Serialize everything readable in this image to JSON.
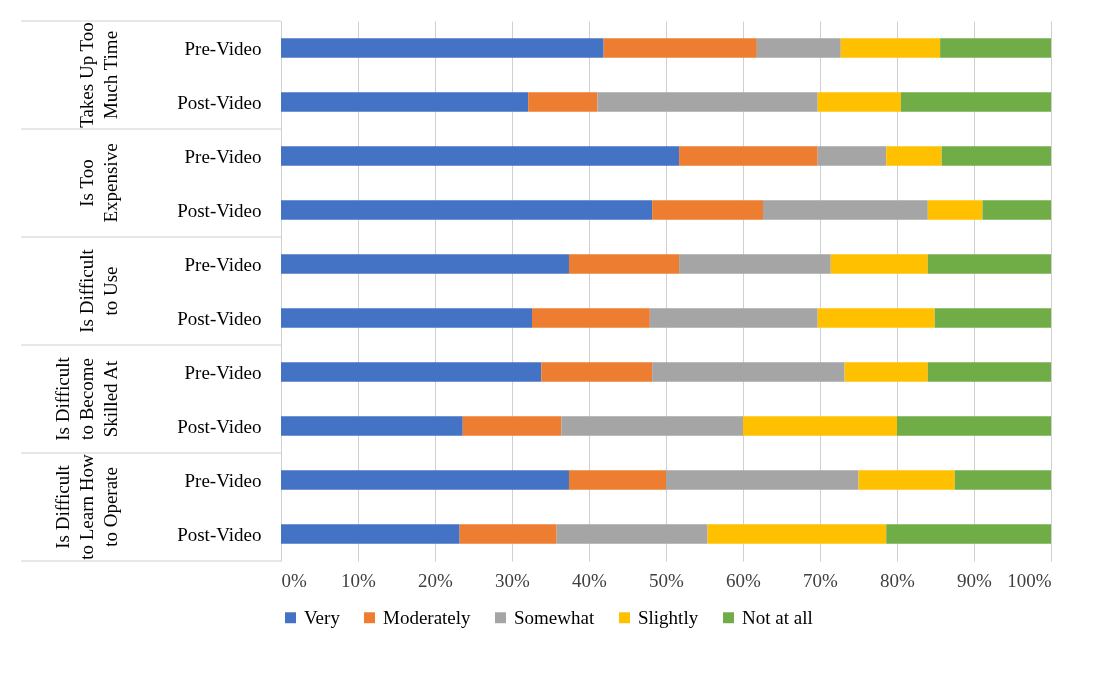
{
  "chart_data": {
    "type": "bar",
    "orientation": "horizontal",
    "stacked": true,
    "categories": [
      "Pre-Video",
      "Post-Video",
      "Pre-Video",
      "Post-Video",
      "Pre-Video",
      "Post-Video",
      "Pre-Video",
      "Post-Video",
      "Pre-Video",
      "Post-Video"
    ],
    "annotations": [
      "Takes Up Too Much Time",
      "Is Too Expensive",
      "Is Difficult to Use",
      "Is Difficult to Become Skilled At",
      "Is Difficult to Learn How to Operate"
    ],
    "series": [
      {
        "name": "Very",
        "color": "#4472c4",
        "values": [
          41.9,
          32.1,
          51.7,
          48.2,
          37.4,
          32.6,
          33.8,
          23.6,
          37.4,
          23.2
        ]
      },
      {
        "name": "Moderately",
        "color": "#ed7d31",
        "values": [
          19.9,
          9.0,
          18.0,
          14.4,
          14.3,
          15.3,
          14.4,
          12.8,
          12.6,
          12.6
        ]
      },
      {
        "name": "Somewhat",
        "color": "#a5a5a5",
        "values": [
          10.9,
          28.6,
          8.9,
          21.4,
          19.7,
          21.8,
          25.0,
          23.6,
          25.0,
          19.6
        ]
      },
      {
        "name": "Slightly",
        "color": "#ffc000",
        "values": [
          12.9,
          10.8,
          7.2,
          7.1,
          12.6,
          15.2,
          10.8,
          20.0,
          12.5,
          23.2
        ]
      },
      {
        "name": "Not at all",
        "color": "#70ad47",
        "values": [
          14.4,
          19.5,
          14.2,
          8.9,
          16.0,
          15.1,
          16.0,
          20.0,
          12.5,
          21.4
        ]
      }
    ],
    "xlim": [
      0,
      100
    ],
    "xticks": [
      {
        "value": 0,
        "label": "0%"
      },
      {
        "value": 10,
        "label": "10%"
      },
      {
        "value": 20,
        "label": "20%"
      },
      {
        "value": 30,
        "label": "30%"
      },
      {
        "value": 40,
        "label": "40%"
      },
      {
        "value": 50,
        "label": "50%"
      },
      {
        "value": 60,
        "label": "60%"
      },
      {
        "value": 70,
        "label": "70%"
      },
      {
        "value": 80,
        "label": "80%"
      },
      {
        "value": 90,
        "label": "90%"
      },
      {
        "value": 100,
        "label": "100%"
      }
    ],
    "grid": "x",
    "legend": "bottom"
  }
}
